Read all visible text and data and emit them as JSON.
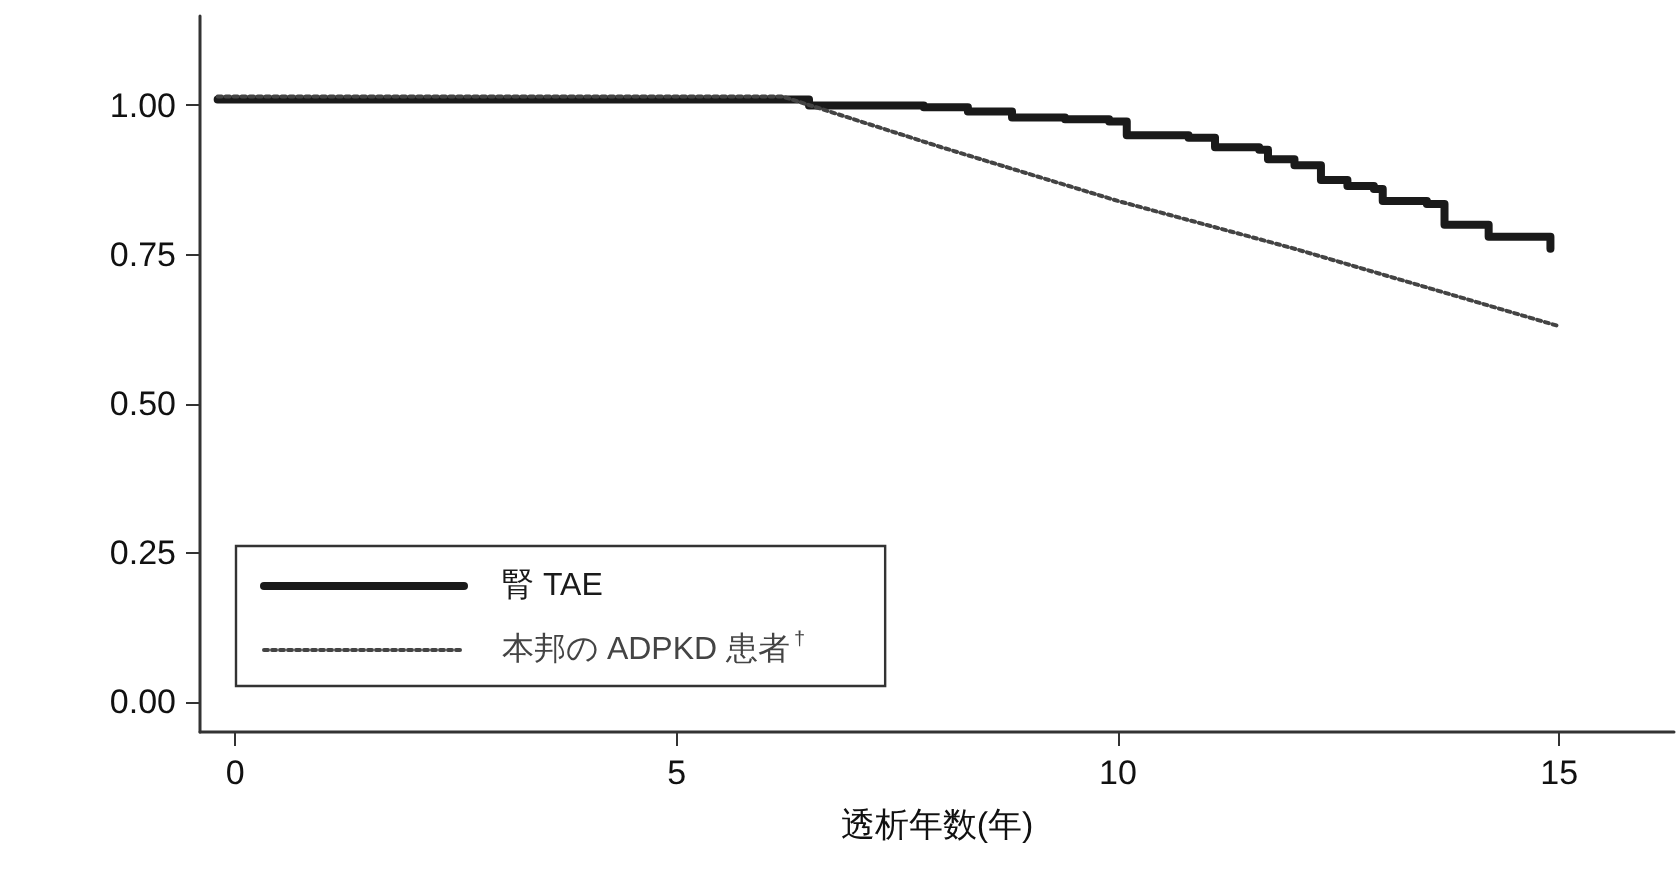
{
  "chart_data": {
    "type": "line",
    "xlabel": "透析年数(年)",
    "xlim": [
      -0.4,
      16.3
    ],
    "xticks": [
      0,
      5,
      10,
      15
    ],
    "ylim": [
      -0.05,
      1.15
    ],
    "yticks": [
      {
        "value": 0,
        "label": "0.00"
      },
      {
        "value": 0.25,
        "label": "0.25"
      },
      {
        "value": 0.5,
        "label": "0.50"
      },
      {
        "value": 0.75,
        "label": "0.75"
      },
      {
        "value": 1,
        "label": "1.00"
      }
    ],
    "grid": false,
    "legend": "bottom left",
    "marker": "none",
    "series": [
      {
        "name": "腎 TAE",
        "type": "step",
        "line_style": "solid",
        "color": "#1a1a1a",
        "x": [
          -0.2,
          6.2,
          6.5,
          7.1,
          7.8,
          8.3,
          8.8,
          9.4,
          9.9,
          10.1,
          10.8,
          11.1,
          11.6,
          11.7,
          12.0,
          12.3,
          12.6,
          12.9,
          13.0,
          13.5,
          13.7,
          14.1,
          14.2,
          14.9
        ],
        "values": [
          1.01,
          1.01,
          1.0,
          1.0,
          0.997,
          0.99,
          0.98,
          0.977,
          0.973,
          0.95,
          0.946,
          0.93,
          0.926,
          0.91,
          0.9,
          0.875,
          0.865,
          0.86,
          0.84,
          0.835,
          0.8,
          0.8,
          0.78,
          0.76
        ]
      },
      {
        "name": "本邦の ADPKD 患者$^{†}$",
        "type": "line",
        "line_style": "dotted",
        "color": "#444444",
        "x": [
          -0.2,
          6.2,
          8,
          10,
          12,
          15
        ],
        "values": [
          1.015,
          1.015,
          0.93,
          0.84,
          0.76,
          0.63
        ]
      }
    ]
  }
}
